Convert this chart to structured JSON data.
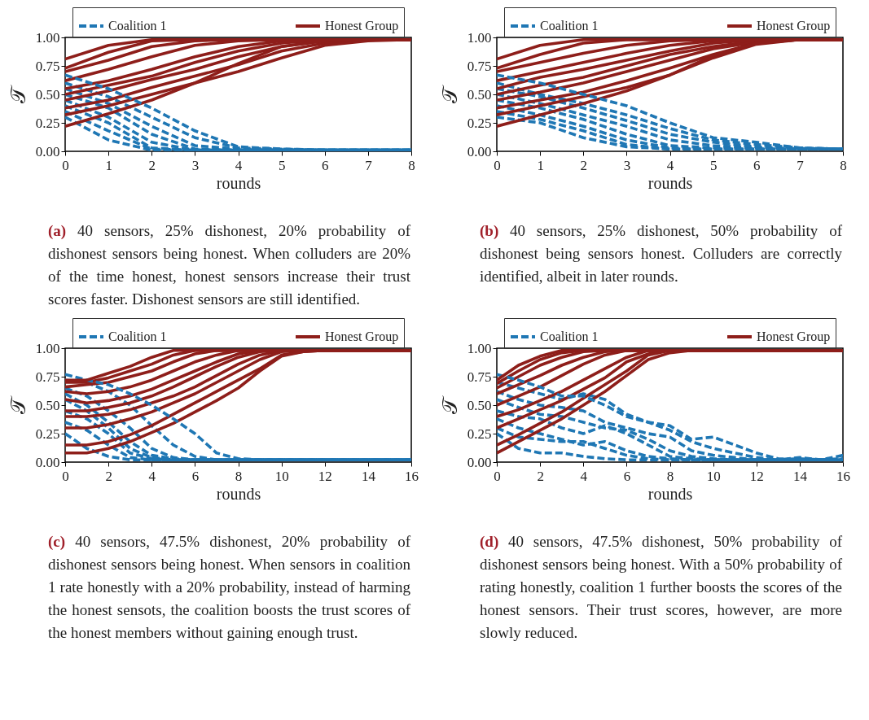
{
  "chart_data": [
    {
      "type": "line",
      "xlabel": "rounds",
      "ylabel": "𝒯",
      "xlim": [
        0,
        8
      ],
      "ylim": [
        0,
        1
      ],
      "xticks": [
        0,
        1,
        2,
        3,
        4,
        5,
        6,
        7,
        8
      ],
      "yticks": [
        {
          "value": 0,
          "label": "0.00"
        },
        {
          "value": 0.25,
          "label": "0.25"
        },
        {
          "value": 0.5,
          "label": "0.50"
        },
        {
          "value": 0.75,
          "label": "0.75"
        },
        {
          "value": 1,
          "label": "1.00"
        }
      ],
      "grid": false,
      "legend": "top",
      "marker": "none",
      "x": [
        0,
        1,
        2,
        3,
        4,
        5,
        6,
        7,
        8
      ],
      "annotations": [
        "(a) 40 sensors, 25% dishonest, 20% probability of dishonest sensors being honest. When colluders are 20% of the time honest, honest sensors increase their trust scores faster. Dishonest sensors are still identified."
      ],
      "series": [
        {
          "name": "Coalition 1",
          "color": "#1f77b4",
          "line_style": "dashed",
          "values": [
            0.67,
            0.55,
            0.38,
            0.18,
            0.04,
            0.02,
            0.01,
            0.01,
            0.01
          ]
        },
        {
          "color": "#1f77b4",
          "line_style": "dashed",
          "values": [
            0.6,
            0.48,
            0.3,
            0.12,
            0.03,
            0.02,
            0.01,
            0.01,
            0.01
          ]
        },
        {
          "color": "#1f77b4",
          "line_style": "dashed",
          "values": [
            0.55,
            0.42,
            0.22,
            0.05,
            0.02,
            0.01,
            0.01,
            0.01,
            0.01
          ]
        },
        {
          "color": "#1f77b4",
          "line_style": "dashed",
          "values": [
            0.5,
            0.38,
            0.15,
            0.02,
            0.01,
            0.01,
            0.01,
            0.01,
            0.01
          ]
        },
        {
          "color": "#1f77b4",
          "line_style": "dashed",
          "values": [
            0.45,
            0.3,
            0.08,
            0.01,
            0.01,
            0.01,
            0.01,
            0.01,
            0.01
          ]
        },
        {
          "color": "#1f77b4",
          "line_style": "dashed",
          "values": [
            0.4,
            0.25,
            0.03,
            0.01,
            0.01,
            0.01,
            0.01,
            0.01,
            0.01
          ]
        },
        {
          "color": "#1f77b4",
          "line_style": "dashed",
          "values": [
            0.35,
            0.18,
            0.02,
            0.01,
            0.01,
            0.01,
            0.01,
            0.01,
            0.01
          ]
        },
        {
          "color": "#1f77b4",
          "line_style": "dashed",
          "values": [
            0.3,
            0.1,
            0.01,
            0.01,
            0.01,
            0.01,
            0.01,
            0.01,
            0.01
          ]
        },
        {
          "name": "Honest Group",
          "color": "#8e1e1a",
          "line_style": "solid",
          "values": [
            0.81,
            0.93,
            0.98,
            0.98,
            0.98,
            0.98,
            0.98,
            0.98,
            0.98
          ]
        },
        {
          "color": "#8e1e1a",
          "line_style": "solid",
          "values": [
            0.73,
            0.87,
            0.97,
            0.98,
            0.98,
            0.98,
            0.98,
            0.98,
            0.98
          ]
        },
        {
          "color": "#8e1e1a",
          "line_style": "solid",
          "values": [
            0.7,
            0.8,
            0.92,
            0.97,
            0.98,
            0.98,
            0.98,
            0.98,
            0.98
          ]
        },
        {
          "color": "#8e1e1a",
          "line_style": "solid",
          "values": [
            0.62,
            0.72,
            0.83,
            0.93,
            0.97,
            0.98,
            0.98,
            0.98,
            0.98
          ]
        },
        {
          "color": "#8e1e1a",
          "line_style": "solid",
          "values": [
            0.55,
            0.62,
            0.72,
            0.83,
            0.92,
            0.97,
            0.98,
            0.98,
            0.98
          ]
        },
        {
          "color": "#8e1e1a",
          "line_style": "solid",
          "values": [
            0.5,
            0.58,
            0.66,
            0.78,
            0.88,
            0.95,
            0.98,
            0.98,
            0.98
          ]
        },
        {
          "color": "#8e1e1a",
          "line_style": "solid",
          "values": [
            0.45,
            0.53,
            0.63,
            0.72,
            0.83,
            0.92,
            0.97,
            0.98,
            0.98
          ]
        },
        {
          "color": "#8e1e1a",
          "line_style": "solid",
          "values": [
            0.38,
            0.45,
            0.56,
            0.66,
            0.76,
            0.88,
            0.95,
            0.98,
            0.98
          ]
        },
        {
          "color": "#8e1e1a",
          "line_style": "solid",
          "values": [
            0.32,
            0.4,
            0.5,
            0.6,
            0.7,
            0.82,
            0.93,
            0.97,
            0.98
          ]
        },
        {
          "color": "#8e1e1a",
          "line_style": "solid",
          "values": [
            0.22,
            0.33,
            0.45,
            0.6,
            0.77,
            0.92,
            0.97,
            0.98,
            0.98
          ]
        }
      ]
    },
    {
      "type": "line",
      "xlabel": "rounds",
      "ylabel": "𝒯",
      "xlim": [
        0,
        8
      ],
      "ylim": [
        0,
        1
      ],
      "xticks": [
        0,
        1,
        2,
        3,
        4,
        5,
        6,
        7,
        8
      ],
      "yticks": [
        {
          "value": 0,
          "label": "0.00"
        },
        {
          "value": 0.25,
          "label": "0.25"
        },
        {
          "value": 0.5,
          "label": "0.50"
        },
        {
          "value": 0.75,
          "label": "0.75"
        },
        {
          "value": 1,
          "label": "1.00"
        }
      ],
      "grid": false,
      "legend": "top",
      "marker": "none",
      "x": [
        0,
        1,
        2,
        3,
        4,
        5,
        6,
        7,
        8
      ],
      "annotations": [
        "(b) 40 sensors, 25% dishonest, 50% probability of dishonest being sensors honest. Colluders are correctly identified, albeit in later rounds."
      ],
      "series": [
        {
          "name": "Coalition 1",
          "color": "#1f77b4",
          "line_style": "dashed",
          "values": [
            0.67,
            0.6,
            0.5,
            0.4,
            0.25,
            0.12,
            0.08,
            0.03,
            0.02
          ]
        },
        {
          "color": "#1f77b4",
          "line_style": "dashed",
          "values": [
            0.6,
            0.5,
            0.42,
            0.32,
            0.2,
            0.1,
            0.06,
            0.03,
            0.02
          ]
        },
        {
          "color": "#1f77b4",
          "line_style": "dashed",
          "values": [
            0.55,
            0.48,
            0.38,
            0.27,
            0.15,
            0.08,
            0.04,
            0.02,
            0.02
          ]
        },
        {
          "color": "#1f77b4",
          "line_style": "dashed",
          "values": [
            0.5,
            0.42,
            0.32,
            0.22,
            0.1,
            0.05,
            0.03,
            0.02,
            0.02
          ]
        },
        {
          "color": "#1f77b4",
          "line_style": "dashed",
          "values": [
            0.45,
            0.38,
            0.28,
            0.15,
            0.05,
            0.03,
            0.02,
            0.02,
            0.02
          ]
        },
        {
          "color": "#1f77b4",
          "line_style": "dashed",
          "values": [
            0.4,
            0.32,
            0.22,
            0.1,
            0.03,
            0.02,
            0.02,
            0.02,
            0.02
          ]
        },
        {
          "color": "#1f77b4",
          "line_style": "dashed",
          "values": [
            0.35,
            0.28,
            0.18,
            0.06,
            0.02,
            0.02,
            0.02,
            0.02,
            0.02
          ]
        },
        {
          "color": "#1f77b4",
          "line_style": "dashed",
          "values": [
            0.3,
            0.25,
            0.12,
            0.04,
            0.02,
            0.02,
            0.02,
            0.02,
            0.02
          ]
        },
        {
          "name": "Honest Group",
          "color": "#8e1e1a",
          "line_style": "solid",
          "values": [
            0.81,
            0.93,
            0.98,
            0.98,
            0.98,
            0.98,
            0.98,
            0.98,
            0.98
          ]
        },
        {
          "color": "#8e1e1a",
          "line_style": "solid",
          "values": [
            0.73,
            0.85,
            0.95,
            0.98,
            0.98,
            0.98,
            0.98,
            0.98,
            0.98
          ]
        },
        {
          "color": "#8e1e1a",
          "line_style": "solid",
          "values": [
            0.7,
            0.78,
            0.86,
            0.93,
            0.97,
            0.98,
            0.98,
            0.98,
            0.98
          ]
        },
        {
          "color": "#8e1e1a",
          "line_style": "solid",
          "values": [
            0.62,
            0.7,
            0.78,
            0.86,
            0.93,
            0.97,
            0.98,
            0.98,
            0.98
          ]
        },
        {
          "color": "#8e1e1a",
          "line_style": "solid",
          "values": [
            0.55,
            0.65,
            0.72,
            0.8,
            0.88,
            0.95,
            0.98,
            0.98,
            0.98
          ]
        },
        {
          "color": "#8e1e1a",
          "line_style": "solid",
          "values": [
            0.5,
            0.58,
            0.65,
            0.75,
            0.85,
            0.92,
            0.97,
            0.98,
            0.98
          ]
        },
        {
          "color": "#8e1e1a",
          "line_style": "solid",
          "values": [
            0.45,
            0.52,
            0.6,
            0.7,
            0.8,
            0.9,
            0.96,
            0.98,
            0.98
          ]
        },
        {
          "color": "#8e1e1a",
          "line_style": "solid",
          "values": [
            0.38,
            0.45,
            0.52,
            0.62,
            0.73,
            0.85,
            0.95,
            0.98,
            0.98
          ]
        },
        {
          "color": "#8e1e1a",
          "line_style": "solid",
          "values": [
            0.32,
            0.4,
            0.48,
            0.56,
            0.67,
            0.82,
            0.94,
            0.98,
            0.98
          ]
        },
        {
          "color": "#8e1e1a",
          "line_style": "solid",
          "values": [
            0.22,
            0.32,
            0.42,
            0.53,
            0.67,
            0.84,
            0.95,
            0.98,
            0.98
          ]
        }
      ]
    },
    {
      "type": "line",
      "xlabel": "rounds",
      "ylabel": "𝒯",
      "xlim": [
        0,
        16
      ],
      "ylim": [
        0,
        1
      ],
      "xticks": [
        0,
        2,
        4,
        6,
        8,
        10,
        12,
        14,
        16
      ],
      "yticks": [
        {
          "value": 0,
          "label": "0.00"
        },
        {
          "value": 0.25,
          "label": "0.25"
        },
        {
          "value": 0.5,
          "label": "0.50"
        },
        {
          "value": 0.75,
          "label": "0.75"
        },
        {
          "value": 1,
          "label": "1.00"
        }
      ],
      "grid": false,
      "legend": "top",
      "marker": "none",
      "x": [
        0,
        1,
        2,
        3,
        4,
        5,
        6,
        7,
        8,
        9,
        10,
        11,
        12,
        13,
        14,
        15,
        16
      ],
      "annotations": [
        "(c) 40 sensors, 47.5% dishonest, 20% probability of dishonest sensors being honest. When sensors in coalition 1 rate honestly with a 20% probability, instead of harming the honest sensots, the coalition boosts the trust scores of the honest members without gaining enough trust."
      ],
      "series": [
        {
          "name": "Coalition 1",
          "color": "#1f77b4",
          "line_style": "dashed",
          "values": [
            0.77,
            0.72,
            0.68,
            0.6,
            0.5,
            0.38,
            0.25,
            0.08,
            0.03,
            0.02,
            0.02,
            0.02,
            0.02,
            0.02,
            0.02,
            0.02,
            0.02
          ]
        },
        {
          "color": "#1f77b4",
          "line_style": "dashed",
          "values": [
            0.72,
            0.7,
            0.62,
            0.5,
            0.32,
            0.15,
            0.05,
            0.02,
            0.02,
            0.02,
            0.02,
            0.02,
            0.02,
            0.02,
            0.02,
            0.02,
            0.02
          ]
        },
        {
          "color": "#1f77b4",
          "line_style": "dashed",
          "values": [
            0.65,
            0.58,
            0.45,
            0.3,
            0.12,
            0.04,
            0.02,
            0.02,
            0.02,
            0.02,
            0.02,
            0.02,
            0.02,
            0.02,
            0.02,
            0.02,
            0.02
          ]
        },
        {
          "color": "#1f77b4",
          "line_style": "dashed",
          "values": [
            0.6,
            0.5,
            0.35,
            0.18,
            0.06,
            0.03,
            0.02,
            0.02,
            0.02,
            0.02,
            0.02,
            0.02,
            0.02,
            0.02,
            0.02,
            0.02,
            0.02
          ]
        },
        {
          "color": "#1f77b4",
          "line_style": "dashed",
          "values": [
            0.55,
            0.45,
            0.3,
            0.12,
            0.04,
            0.02,
            0.02,
            0.02,
            0.02,
            0.02,
            0.02,
            0.02,
            0.02,
            0.02,
            0.02,
            0.02,
            0.02
          ]
        },
        {
          "color": "#1f77b4",
          "line_style": "dashed",
          "values": [
            0.45,
            0.38,
            0.25,
            0.08,
            0.03,
            0.02,
            0.02,
            0.02,
            0.02,
            0.02,
            0.02,
            0.02,
            0.02,
            0.02,
            0.02,
            0.02,
            0.02
          ]
        },
        {
          "color": "#1f77b4",
          "line_style": "dashed",
          "values": [
            0.35,
            0.28,
            0.15,
            0.04,
            0.02,
            0.02,
            0.02,
            0.02,
            0.02,
            0.02,
            0.02,
            0.02,
            0.02,
            0.02,
            0.02,
            0.02,
            0.02
          ]
        },
        {
          "color": "#1f77b4",
          "line_style": "dashed",
          "values": [
            0.25,
            0.12,
            0.05,
            0.02,
            0.02,
            0.02,
            0.02,
            0.02,
            0.02,
            0.02,
            0.02,
            0.02,
            0.02,
            0.02,
            0.02,
            0.02,
            0.02
          ]
        },
        {
          "name": "Honest Group",
          "color": "#8e1e1a",
          "line_style": "solid",
          "values": [
            0.72,
            0.72,
            0.78,
            0.84,
            0.92,
            0.98,
            0.98,
            0.98,
            0.98,
            0.98,
            0.98,
            0.98,
            0.98,
            0.98,
            0.98,
            0.98,
            0.98
          ]
        },
        {
          "color": "#8e1e1a",
          "line_style": "solid",
          "values": [
            0.7,
            0.7,
            0.74,
            0.8,
            0.86,
            0.94,
            0.98,
            0.98,
            0.98,
            0.98,
            0.98,
            0.98,
            0.98,
            0.98,
            0.98,
            0.98,
            0.98
          ]
        },
        {
          "color": "#8e1e1a",
          "line_style": "solid",
          "values": [
            0.66,
            0.68,
            0.7,
            0.75,
            0.8,
            0.88,
            0.95,
            0.98,
            0.98,
            0.98,
            0.98,
            0.98,
            0.98,
            0.98,
            0.98,
            0.98,
            0.98
          ]
        },
        {
          "color": "#8e1e1a",
          "line_style": "solid",
          "values": [
            0.62,
            0.6,
            0.62,
            0.66,
            0.72,
            0.8,
            0.88,
            0.94,
            0.98,
            0.98,
            0.98,
            0.98,
            0.98,
            0.98,
            0.98,
            0.98,
            0.98
          ]
        },
        {
          "color": "#8e1e1a",
          "line_style": "solid",
          "values": [
            0.55,
            0.52,
            0.54,
            0.58,
            0.64,
            0.72,
            0.8,
            0.88,
            0.95,
            0.98,
            0.98,
            0.98,
            0.98,
            0.98,
            0.98,
            0.98,
            0.98
          ]
        },
        {
          "color": "#8e1e1a",
          "line_style": "solid",
          "values": [
            0.45,
            0.45,
            0.48,
            0.52,
            0.58,
            0.66,
            0.75,
            0.84,
            0.92,
            0.97,
            0.98,
            0.98,
            0.98,
            0.98,
            0.98,
            0.98,
            0.98
          ]
        },
        {
          "color": "#8e1e1a",
          "line_style": "solid",
          "values": [
            0.4,
            0.4,
            0.42,
            0.46,
            0.52,
            0.58,
            0.66,
            0.76,
            0.86,
            0.94,
            0.98,
            0.98,
            0.98,
            0.98,
            0.98,
            0.98,
            0.98
          ]
        },
        {
          "color": "#8e1e1a",
          "line_style": "solid",
          "values": [
            0.3,
            0.3,
            0.33,
            0.38,
            0.44,
            0.52,
            0.6,
            0.7,
            0.8,
            0.9,
            0.97,
            0.98,
            0.98,
            0.98,
            0.98,
            0.98,
            0.98
          ]
        },
        {
          "color": "#8e1e1a",
          "line_style": "solid",
          "values": [
            0.15,
            0.15,
            0.18,
            0.24,
            0.32,
            0.42,
            0.52,
            0.62,
            0.72,
            0.82,
            0.94,
            0.97,
            0.98,
            0.98,
            0.98,
            0.98,
            0.98
          ]
        },
        {
          "color": "#8e1e1a",
          "line_style": "solid",
          "values": [
            0.08,
            0.08,
            0.12,
            0.18,
            0.26,
            0.34,
            0.44,
            0.54,
            0.65,
            0.8,
            0.93,
            0.97,
            0.98,
            0.98,
            0.98,
            0.98,
            0.98
          ]
        }
      ]
    },
    {
      "type": "line",
      "xlabel": "rounds",
      "ylabel": "𝒯",
      "xlim": [
        0,
        16
      ],
      "ylim": [
        0,
        1
      ],
      "xticks": [
        0,
        2,
        4,
        6,
        8,
        10,
        12,
        14,
        16
      ],
      "yticks": [
        {
          "value": 0,
          "label": "0.00"
        },
        {
          "value": 0.25,
          "label": "0.25"
        },
        {
          "value": 0.5,
          "label": "0.50"
        },
        {
          "value": 0.75,
          "label": "0.75"
        },
        {
          "value": 1,
          "label": "1.00"
        }
      ],
      "grid": false,
      "legend": "top",
      "marker": "none",
      "x": [
        0,
        1,
        2,
        3,
        4,
        5,
        6,
        7,
        8,
        9,
        10,
        11,
        12,
        13,
        14,
        15,
        16
      ],
      "annotations": [
        "(d) 40 sensors, 47.5% dishonest, 50% probability of dishonest sensors being honest. With a 50% probability of rating honestly, coalition 1 further boosts the scores of the honest sensors. Their trust scores, however, are more slowly reduced."
      ],
      "series": [
        {
          "name": "Coalition 1",
          "color": "#1f77b4",
          "line_style": "dashed",
          "values": [
            0.77,
            0.72,
            0.66,
            0.58,
            0.58,
            0.5,
            0.4,
            0.35,
            0.32,
            0.2,
            0.22,
            0.15,
            0.08,
            0.03,
            0.02,
            0.02,
            0.02
          ]
        },
        {
          "color": "#1f77b4",
          "line_style": "dashed",
          "values": [
            0.7,
            0.65,
            0.6,
            0.55,
            0.6,
            0.55,
            0.42,
            0.35,
            0.28,
            0.18,
            0.12,
            0.08,
            0.04,
            0.02,
            0.03,
            0.02,
            0.03
          ]
        },
        {
          "color": "#1f77b4",
          "line_style": "dashed",
          "values": [
            0.62,
            0.55,
            0.5,
            0.48,
            0.45,
            0.35,
            0.3,
            0.25,
            0.22,
            0.1,
            0.06,
            0.04,
            0.02,
            0.02,
            0.02,
            0.02,
            0.02
          ]
        },
        {
          "color": "#1f77b4",
          "line_style": "dashed",
          "values": [
            0.55,
            0.48,
            0.42,
            0.4,
            0.35,
            0.3,
            0.28,
            0.2,
            0.1,
            0.05,
            0.03,
            0.02,
            0.02,
            0.02,
            0.04,
            0.02,
            0.06
          ]
        },
        {
          "color": "#1f77b4",
          "line_style": "dashed",
          "values": [
            0.45,
            0.4,
            0.38,
            0.3,
            0.25,
            0.32,
            0.25,
            0.15,
            0.05,
            0.03,
            0.02,
            0.02,
            0.02,
            0.02,
            0.02,
            0.02,
            0.02
          ]
        },
        {
          "color": "#1f77b4",
          "line_style": "dashed",
          "values": [
            0.38,
            0.3,
            0.25,
            0.2,
            0.15,
            0.18,
            0.1,
            0.05,
            0.03,
            0.02,
            0.02,
            0.02,
            0.02,
            0.02,
            0.02,
            0.02,
            0.02
          ]
        },
        {
          "color": "#1f77b4",
          "line_style": "dashed",
          "values": [
            0.3,
            0.22,
            0.2,
            0.18,
            0.18,
            0.12,
            0.06,
            0.03,
            0.02,
            0.02,
            0.02,
            0.02,
            0.02,
            0.02,
            0.02,
            0.02,
            0.02
          ]
        },
        {
          "color": "#1f77b4",
          "line_style": "dashed",
          "values": [
            0.25,
            0.12,
            0.08,
            0.08,
            0.05,
            0.03,
            0.02,
            0.02,
            0.02,
            0.02,
            0.02,
            0.02,
            0.02,
            0.02,
            0.02,
            0.02,
            0.02
          ]
        },
        {
          "name": "Honest Group",
          "color": "#8e1e1a",
          "line_style": "solid",
          "values": [
            0.72,
            0.85,
            0.93,
            0.98,
            0.98,
            0.98,
            0.98,
            0.98,
            0.98,
            0.98,
            0.98,
            0.98,
            0.98,
            0.98,
            0.98,
            0.98,
            0.98
          ]
        },
        {
          "color": "#8e1e1a",
          "line_style": "solid",
          "values": [
            0.69,
            0.8,
            0.9,
            0.96,
            0.98,
            0.98,
            0.98,
            0.98,
            0.98,
            0.98,
            0.98,
            0.98,
            0.98,
            0.98,
            0.98,
            0.98,
            0.98
          ]
        },
        {
          "color": "#8e1e1a",
          "line_style": "solid",
          "values": [
            0.65,
            0.75,
            0.85,
            0.92,
            0.97,
            0.98,
            0.98,
            0.98,
            0.98,
            0.98,
            0.98,
            0.98,
            0.98,
            0.98,
            0.98,
            0.98,
            0.98
          ]
        },
        {
          "color": "#8e1e1a",
          "line_style": "solid",
          "values": [
            0.6,
            0.68,
            0.76,
            0.85,
            0.92,
            0.97,
            0.98,
            0.98,
            0.98,
            0.98,
            0.98,
            0.98,
            0.98,
            0.98,
            0.98,
            0.98,
            0.98
          ]
        },
        {
          "color": "#8e1e1a",
          "line_style": "solid",
          "values": [
            0.5,
            0.58,
            0.66,
            0.76,
            0.86,
            0.94,
            0.98,
            0.98,
            0.98,
            0.98,
            0.98,
            0.98,
            0.98,
            0.98,
            0.98,
            0.98,
            0.98
          ]
        },
        {
          "color": "#8e1e1a",
          "line_style": "solid",
          "values": [
            0.4,
            0.46,
            0.54,
            0.62,
            0.72,
            0.82,
            0.92,
            0.98,
            0.98,
            0.98,
            0.98,
            0.98,
            0.98,
            0.98,
            0.98,
            0.98,
            0.98
          ]
        },
        {
          "color": "#8e1e1a",
          "line_style": "solid",
          "values": [
            0.3,
            0.38,
            0.46,
            0.54,
            0.64,
            0.74,
            0.88,
            0.95,
            0.98,
            0.98,
            0.98,
            0.98,
            0.98,
            0.98,
            0.98,
            0.98,
            0.98
          ]
        },
        {
          "color": "#8e1e1a",
          "line_style": "solid",
          "values": [
            0.15,
            0.24,
            0.34,
            0.44,
            0.56,
            0.68,
            0.8,
            0.94,
            0.98,
            0.98,
            0.98,
            0.98,
            0.98,
            0.98,
            0.98,
            0.98,
            0.98
          ]
        },
        {
          "color": "#8e1e1a",
          "line_style": "solid",
          "values": [
            0.08,
            0.18,
            0.28,
            0.38,
            0.5,
            0.62,
            0.76,
            0.9,
            0.96,
            0.98,
            0.98,
            0.98,
            0.98,
            0.98,
            0.98,
            0.98,
            0.98
          ]
        }
      ]
    }
  ]
}
